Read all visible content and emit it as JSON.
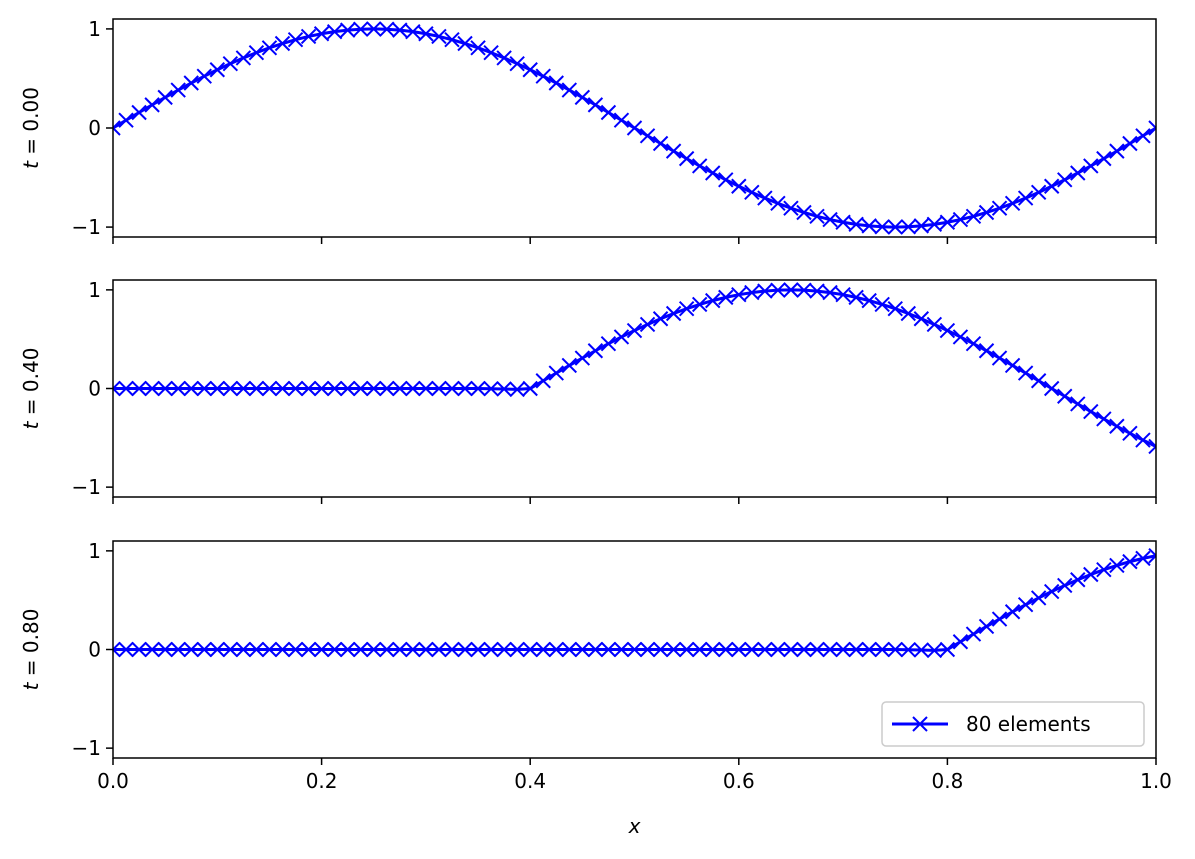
{
  "chart_data": {
    "type": "line",
    "xlabel": "x",
    "xlim": [
      0.0,
      1.0
    ],
    "x_ticks": [
      0.0,
      0.2,
      0.4,
      0.6,
      0.8,
      1.0
    ],
    "x_tick_labels": [
      "0.0",
      "0.2",
      "0.4",
      "0.6",
      "0.8",
      "1.0"
    ],
    "x_tick_labels_on": "bottom",
    "grid": false,
    "legend": {
      "entries": [
        "80 elements"
      ],
      "placement": "lower-right",
      "panel": 2
    },
    "line_color": "#0000ff",
    "marker": "x",
    "elements": 80,
    "panels": [
      {
        "t_prefix": "t",
        "t_value": "0.00",
        "ylim": [
          -1.1,
          1.1
        ],
        "y_ticks": [
          -1,
          0,
          1
        ],
        "y_tick_labels": [
          "−1",
          "0",
          "1"
        ],
        "series": [
          {
            "name": "80 elements",
            "front": 0.0,
            "profile": "sin(2π(x − front)) for x ≥ front, else 0"
          }
        ]
      },
      {
        "t_prefix": "t",
        "t_value": "0.40",
        "ylim": [
          -1.1,
          1.1
        ],
        "y_ticks": [
          -1,
          0,
          1
        ],
        "y_tick_labels": [
          "−1",
          "0",
          "1"
        ],
        "series": [
          {
            "name": "80 elements",
            "front": 0.4,
            "profile": "sin(2π(x − front)) for x ≥ front, else 0"
          }
        ]
      },
      {
        "t_prefix": "t",
        "t_value": "0.80",
        "ylim": [
          -1.1,
          1.1
        ],
        "y_ticks": [
          -1,
          0,
          1
        ],
        "y_tick_labels": [
          "−1",
          "0",
          "1"
        ],
        "series": [
          {
            "name": "80 elements",
            "front": 0.8,
            "profile": "sin(2π(x − front)) for x ≥ front, else 0"
          }
        ]
      }
    ]
  }
}
